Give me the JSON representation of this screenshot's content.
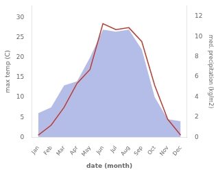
{
  "chart_data": {
    "type": "line",
    "categories": [
      "Jan",
      "Feb",
      "Mar",
      "Apr",
      "May",
      "Jun",
      "Jul",
      "Aug",
      "Sep",
      "Oct",
      "Nov",
      "Dec"
    ],
    "xlabel": "date (month)",
    "ylabel": "max temp (C)",
    "y2label": "med. precipitation (kg/m2)",
    "series": [
      {
        "type": "area",
        "color": "#b3bde8",
        "values": [
          6.0,
          7.5,
          13.0,
          14.0,
          20.0,
          27.0,
          26.5,
          27.0,
          22.0,
          10.0,
          4.5,
          4.0
        ]
      },
      {
        "type": "line",
        "color": "#c0392b",
        "values": [
          0.5,
          3.0,
          7.5,
          13.5,
          17.0,
          28.5,
          27.0,
          27.5,
          24.0,
          13.0,
          4.5,
          0.5
        ]
      }
    ],
    "ylim": [
      0,
      33
    ],
    "yticks": [
      0,
      5,
      10,
      15,
      20,
      25,
      30
    ],
    "y2lim": [
      0,
      13.066
    ],
    "y2ticks": [
      0,
      2,
      4,
      6,
      8,
      10,
      12
    ],
    "grid": false
  }
}
